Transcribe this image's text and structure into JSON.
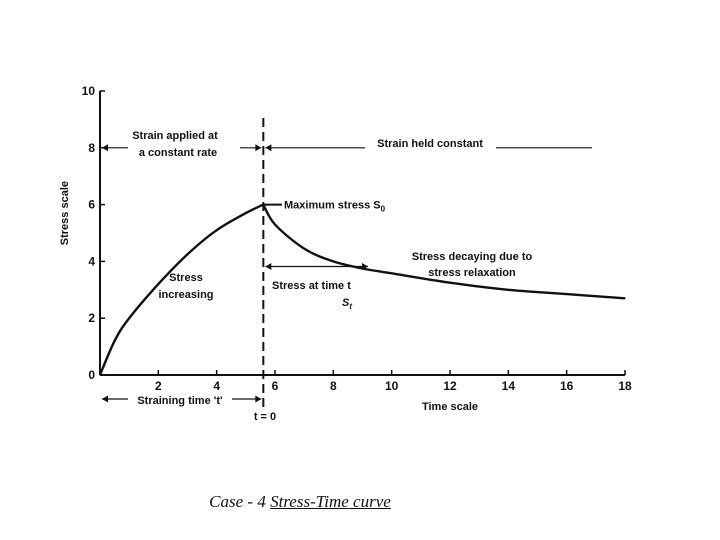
{
  "caption": {
    "prefix": "Case - 4 ",
    "title": "Stress-Time curve"
  },
  "chart_data": {
    "type": "line",
    "ylabel": "Stress scale",
    "xlabel": "Time scale",
    "xlim": [
      0,
      18
    ],
    "ylim": [
      0,
      10
    ],
    "x_ticks": [
      "2",
      "4",
      "6",
      "8",
      "10",
      "12",
      "14",
      "16",
      "18"
    ],
    "y_ticks": [
      "0",
      "2",
      "4",
      "6",
      "8",
      "10"
    ],
    "grid": false,
    "t0_x": 5.6,
    "series": [
      {
        "x": [
          0,
          0.5,
          1,
          2,
          3,
          4,
          5,
          5.6,
          6,
          7,
          8,
          9,
          10,
          12,
          14,
          16,
          18
        ],
        "y": [
          0,
          1.2,
          2.0,
          3.2,
          4.25,
          5.1,
          5.7,
          6.0,
          5.3,
          4.45,
          4.0,
          3.75,
          3.58,
          3.25,
          3.0,
          2.85,
          2.7
        ]
      }
    ],
    "annotations": {
      "strain_applied": [
        "Strain applied at",
        "a constant rate"
      ],
      "strain_held": "Strain held constant",
      "max_stress": "Maximum stress S",
      "max_stress_sub": "0",
      "stress_increasing": [
        "Stress",
        "increasing"
      ],
      "stress_decaying": [
        "Stress decaying due to",
        "stress relaxation"
      ],
      "stress_at_time": "Stress at time t",
      "stress_at_time_sym": "S",
      "stress_at_time_sub": "t",
      "straining_time": "Straining time 't'",
      "t_zero": "t = 0",
      "origin_label": "0"
    }
  }
}
